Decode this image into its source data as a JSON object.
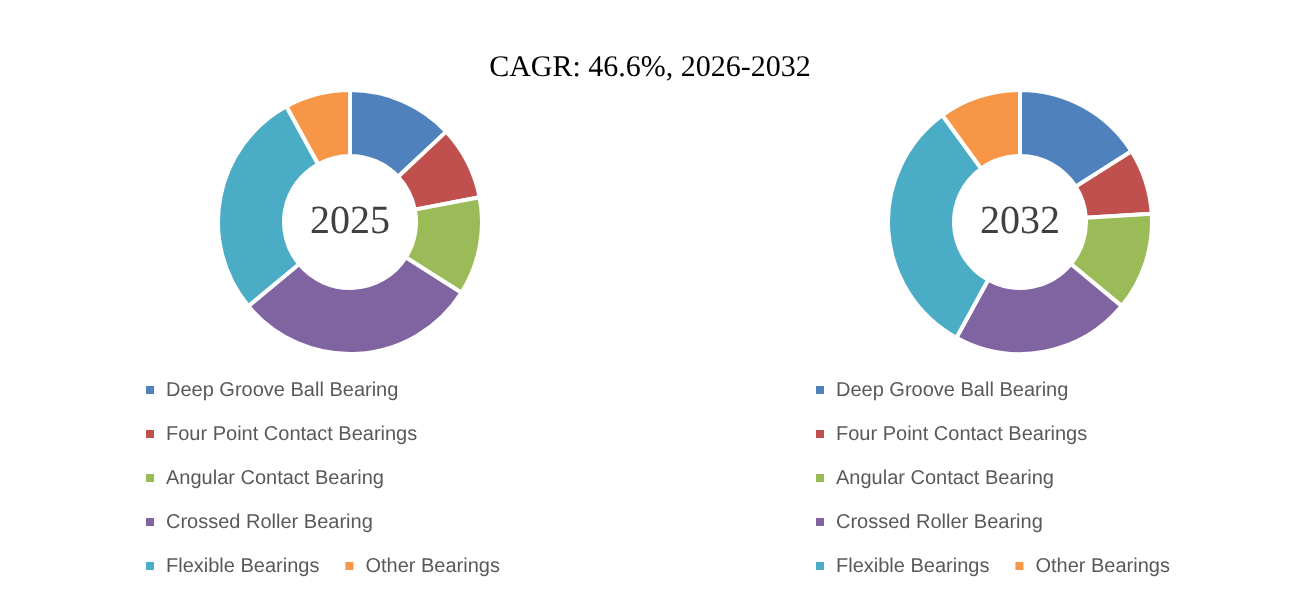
{
  "chart_data": [
    {
      "type": "other",
      "title": "CAGR:   46.6%, 2026-2032"
    },
    {
      "type": "donut",
      "annotations": [
        "2025"
      ],
      "legend": "bottom",
      "categories": [
        "Deep Groove Ball Bearing",
        "Four Point Contact Bearings",
        "Angular Contact Bearing",
        "Crossed Roller Bearing",
        "Flexible Bearings",
        "Other Bearings"
      ],
      "values": [
        13,
        9,
        12,
        30,
        28,
        8
      ],
      "colors": [
        "#4f81bd",
        "#c0504d",
        "#9bbb59",
        "#8064a2",
        "#4bacc6",
        "#f79646"
      ]
    },
    {
      "type": "donut",
      "annotations": [
        "2032"
      ],
      "legend": "bottom",
      "categories": [
        "Deep Groove Ball Bearing",
        "Four Point Contact Bearings",
        "Angular Contact Bearing",
        "Crossed Roller Bearing",
        "Flexible Bearings",
        "Other Bearings"
      ],
      "values": [
        16,
        8,
        12,
        22,
        32,
        10
      ],
      "colors": [
        "#4f81bd",
        "#c0504d",
        "#9bbb59",
        "#8064a2",
        "#4bacc6",
        "#f79646"
      ]
    }
  ]
}
